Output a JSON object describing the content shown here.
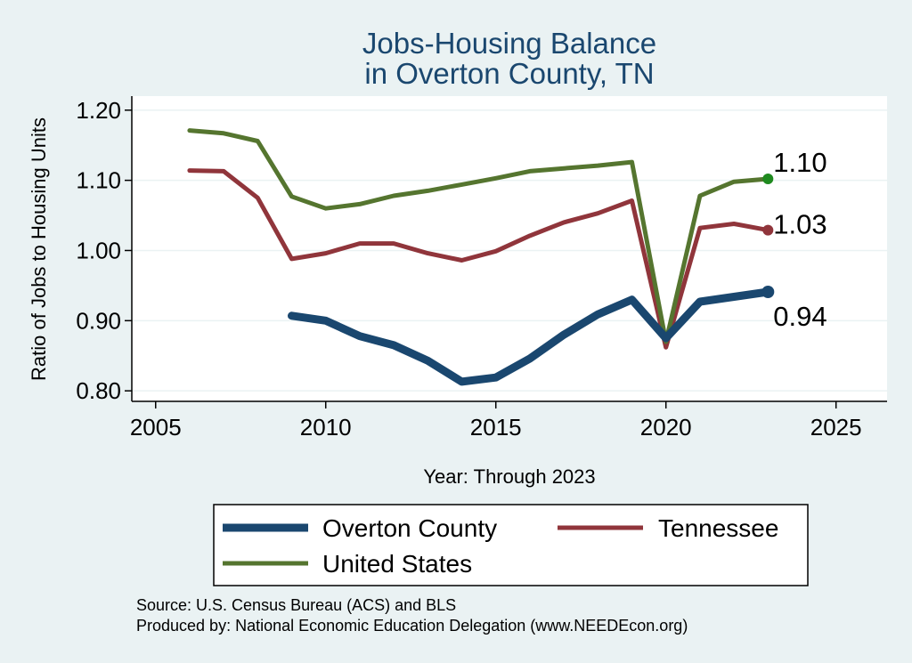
{
  "chart_data": {
    "type": "line",
    "title": [
      "Jobs-Housing Balance",
      "in Overton County, TN"
    ],
    "xlabel": "Year: Through 2023",
    "ylabel": "Ratio of Jobs to Housing Units",
    "xlim": [
      2004.3,
      2026.5
    ],
    "ylim": [
      0.785,
      1.22
    ],
    "xticks": [
      2005,
      2010,
      2015,
      2020,
      2025
    ],
    "xtick_labels": [
      "2005",
      "2010",
      "2015",
      "2020",
      "2025"
    ],
    "yticks": [
      0.8,
      0.9,
      1.0,
      1.1,
      1.2
    ],
    "ytick_labels": [
      "0.80",
      "0.90",
      "1.00",
      "1.10",
      "1.20"
    ],
    "grid": true,
    "legend_position": "bottom",
    "series": [
      {
        "name": "Overton County",
        "color": "#1a476f",
        "x": [
          2009,
          2010,
          2011,
          2012,
          2013,
          2014,
          2015,
          2016,
          2017,
          2018,
          2019,
          2020,
          2021,
          2022,
          2023
        ],
        "values": [
          0.907,
          0.9,
          0.878,
          0.865,
          0.843,
          0.813,
          0.819,
          0.846,
          0.88,
          0.909,
          0.93,
          0.875,
          0.927,
          0.934,
          0.941
        ],
        "end_label": "0.94"
      },
      {
        "name": "Tennessee",
        "color": "#90353b",
        "x": [
          2006,
          2007,
          2008,
          2009,
          2010,
          2011,
          2012,
          2013,
          2014,
          2015,
          2016,
          2017,
          2018,
          2019,
          2020,
          2021,
          2022,
          2023
        ],
        "values": [
          1.114,
          1.113,
          1.075,
          0.988,
          0.996,
          1.01,
          1.01,
          0.996,
          0.986,
          0.999,
          1.021,
          1.04,
          1.053,
          1.071,
          0.862,
          1.032,
          1.038,
          1.029
        ],
        "end_label": "1.03"
      },
      {
        "name": "United States",
        "color": "#55752f",
        "x": [
          2006,
          2007,
          2008,
          2009,
          2010,
          2011,
          2012,
          2013,
          2014,
          2015,
          2016,
          2017,
          2018,
          2019,
          2020,
          2021,
          2022,
          2023
        ],
        "values": [
          1.171,
          1.167,
          1.156,
          1.077,
          1.06,
          1.066,
          1.078,
          1.085,
          1.094,
          1.103,
          1.113,
          1.117,
          1.121,
          1.126,
          0.87,
          1.078,
          1.098,
          1.102
        ],
        "end_label": "1.10"
      }
    ],
    "legend": [
      "Overton County",
      "Tennessee",
      "United States"
    ]
  },
  "footer": {
    "source": "Source: U.S. Census Bureau (ACS) and BLS",
    "produced_by": "Produced by: National Economic Education Delegation (www.NEEDEcon.org)"
  }
}
